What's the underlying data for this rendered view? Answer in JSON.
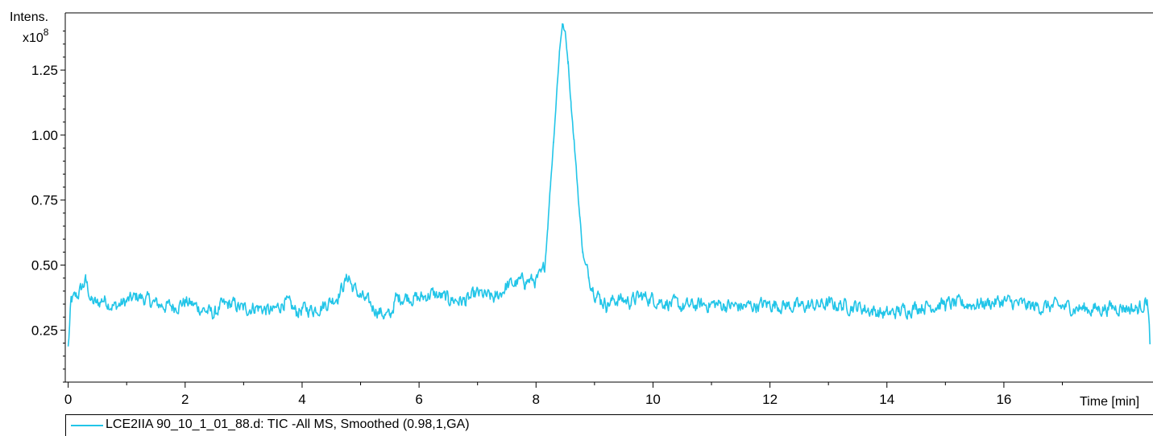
{
  "chart_data": {
    "type": "line",
    "ylabel": "Intens.",
    "y_multiplier_base": "x10",
    "y_multiplier_exp": "8",
    "xlabel": "Time [min]",
    "xlim": [
      -0.05,
      18.55
    ],
    "ylim": [
      0.05,
      1.47
    ],
    "x_ticks": [
      0,
      2,
      4,
      6,
      8,
      10,
      12,
      14,
      16
    ],
    "x_tick_labels": [
      "0",
      "2",
      "4",
      "6",
      "8",
      "10",
      "12",
      "14",
      "16"
    ],
    "y_ticks": [
      0.25,
      0.5,
      0.75,
      1.0,
      1.25
    ],
    "y_tick_labels": [
      "0.25",
      "0.50",
      "0.75",
      "1.00",
      "1.25"
    ],
    "grid": false,
    "series": [
      {
        "name": "LCE2IIA 90_10_1_01_88.d: TIC -All MS, Smoothed (0.98,1,GA)",
        "color": "#22c5e8",
        "x": [
          0.0,
          0.05,
          0.15,
          0.25,
          0.3,
          0.4,
          0.5,
          0.6,
          0.8,
          1.0,
          1.2,
          1.5,
          1.8,
          2.0,
          2.3,
          2.5,
          2.6,
          2.8,
          3.0,
          3.2,
          3.5,
          3.7,
          3.9,
          4.0,
          4.2,
          4.4,
          4.6,
          4.8,
          4.85,
          5.0,
          5.2,
          5.4,
          5.5,
          5.6,
          5.8,
          6.0,
          6.2,
          6.5,
          6.8,
          7.0,
          7.3,
          7.5,
          7.8,
          8.0,
          8.1,
          8.15,
          8.2,
          8.25,
          8.3,
          8.35,
          8.4,
          8.45,
          8.5,
          8.55,
          8.6,
          8.65,
          8.7,
          8.75,
          8.8,
          8.85,
          8.9,
          9.0,
          9.1,
          9.2,
          9.4,
          9.6,
          9.8,
          10.0,
          10.5,
          11.0,
          11.5,
          12.0,
          12.5,
          13.0,
          13.5,
          14.0,
          14.5,
          15.0,
          15.5,
          16.0,
          16.5,
          17.0,
          17.5,
          18.0,
          18.3,
          18.45,
          18.5
        ],
        "values": [
          0.18,
          0.36,
          0.38,
          0.42,
          0.44,
          0.36,
          0.35,
          0.37,
          0.34,
          0.36,
          0.38,
          0.35,
          0.34,
          0.36,
          0.33,
          0.31,
          0.34,
          0.35,
          0.33,
          0.34,
          0.32,
          0.36,
          0.32,
          0.33,
          0.33,
          0.35,
          0.38,
          0.46,
          0.42,
          0.38,
          0.34,
          0.31,
          0.3,
          0.37,
          0.38,
          0.37,
          0.39,
          0.37,
          0.36,
          0.39,
          0.37,
          0.42,
          0.44,
          0.44,
          0.46,
          0.5,
          0.65,
          0.82,
          0.98,
          1.15,
          1.32,
          1.43,
          1.39,
          1.28,
          1.12,
          0.98,
          0.83,
          0.68,
          0.55,
          0.49,
          0.46,
          0.4,
          0.37,
          0.35,
          0.37,
          0.36,
          0.38,
          0.37,
          0.34,
          0.35,
          0.34,
          0.35,
          0.34,
          0.35,
          0.34,
          0.31,
          0.34,
          0.35,
          0.35,
          0.36,
          0.34,
          0.34,
          0.33,
          0.34,
          0.33,
          0.37,
          0.2
        ]
      }
    ]
  },
  "legend": {
    "label": "LCE2IIA 90_10_1_01_88.d: TIC -All MS, Smoothed (0.98,1,GA)"
  }
}
